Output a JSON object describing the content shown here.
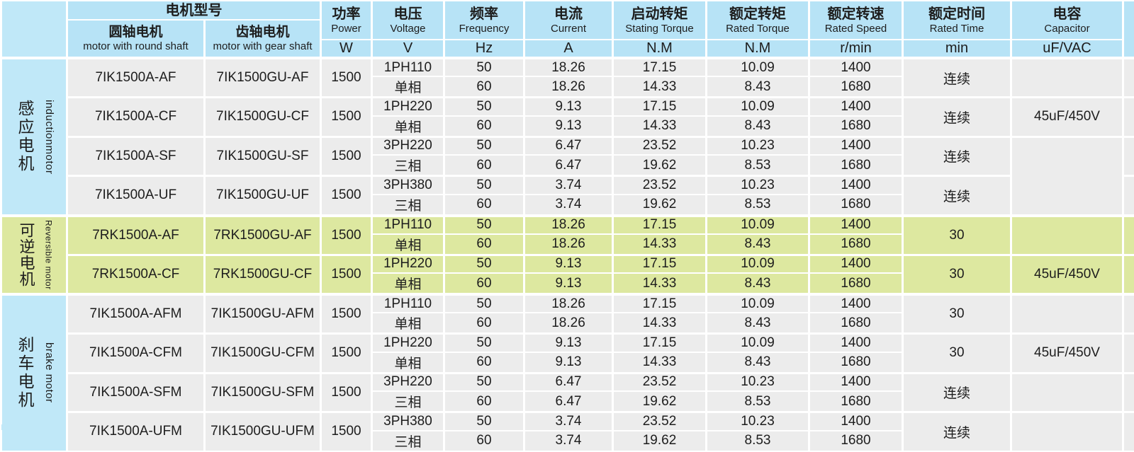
{
  "palette": {
    "header_blue": "#b7e3f6",
    "label_blue": "#c0e8f8",
    "row_grey": "#ececec",
    "row_green": "#dde8a0",
    "border_white": "#ffffff",
    "text_dark": "#1d1d1d"
  },
  "header": {
    "model_group_cn": "电机型号",
    "round_shaft": {
      "cn": "圆轴电机",
      "en": "motor with round shaft"
    },
    "gear_shaft": {
      "cn": "齿轴电机",
      "en": "motor with gear shaft"
    },
    "cols": {
      "power": {
        "cn": "功率",
        "en": "Power",
        "unit": "W"
      },
      "voltage": {
        "cn": "电压",
        "en": "Voltage",
        "unit": "V"
      },
      "frequency": {
        "cn": "频率",
        "en": "Frequency",
        "unit": "Hz"
      },
      "current": {
        "cn": "电流",
        "en": "Current",
        "unit": "A"
      },
      "starting_torque": {
        "cn": "启动转矩",
        "en": "Stating Torque",
        "unit": "N.M"
      },
      "rated_torque": {
        "cn": "额定转矩",
        "en": "Rated Torque",
        "unit": "N.M"
      },
      "rated_speed": {
        "cn": "额定转速",
        "en": "Rated Speed",
        "unit": "r/min"
      },
      "rated_time": {
        "cn": "额定时间",
        "en": "Rated Time",
        "unit": "min"
      },
      "capacitor": {
        "cn": "电容",
        "en": "Capacitor",
        "unit": "uF/VAC"
      }
    }
  },
  "groups": [
    {
      "id": "induction",
      "label_cn": "感应电机",
      "label_en": "inductionmotor",
      "color": "grey",
      "label_style": "blue",
      "motors": [
        {
          "round": "7IK1500A-AF",
          "gear": "7IK1500GU-AF",
          "power": "1500",
          "voltage": "1PH110",
          "phase": "单相",
          "time": "连续",
          "capacitor": {
            "text": "",
            "span": 1
          },
          "rows": [
            {
              "freq": "50",
              "current": "18.26",
              "starting_torque": "17.15",
              "rated_torque": "10.09",
              "speed": "1400"
            },
            {
              "freq": "60",
              "current": "18.26",
              "starting_torque": "14.33",
              "rated_torque": "8.43",
              "speed": "1680"
            }
          ]
        },
        {
          "round": "7IK1500A-CF",
          "gear": "7IK1500GU-CF",
          "power": "1500",
          "voltage": "1PH220",
          "phase": "单相",
          "time": "连续",
          "capacitor": {
            "text": "45uF/450V",
            "span": 1
          },
          "rows": [
            {
              "freq": "50",
              "current": "9.13",
              "starting_torque": "17.15",
              "rated_torque": "10.09",
              "speed": "1400"
            },
            {
              "freq": "60",
              "current": "9.13",
              "starting_torque": "14.33",
              "rated_torque": "8.43",
              "speed": "1680"
            }
          ]
        },
        {
          "round": "7IK1500A-SF",
          "gear": "7IK1500GU-SF",
          "power": "1500",
          "voltage": "3PH220",
          "phase": "三相",
          "time": "连续",
          "capacitor": {
            "text": "",
            "span": 2
          },
          "rows": [
            {
              "freq": "50",
              "current": "6.47",
              "starting_torque": "23.52",
              "rated_torque": "10.23",
              "speed": "1400"
            },
            {
              "freq": "60",
              "current": "6.47",
              "starting_torque": "19.62",
              "rated_torque": "8.53",
              "speed": "1680"
            }
          ]
        },
        {
          "round": "7IK1500A-UF",
          "gear": "7IK1500GU-UF",
          "power": "1500",
          "voltage": "3PH380",
          "phase": "三相",
          "time": "连续",
          "capacitor": null,
          "rows": [
            {
              "freq": "50",
              "current": "3.74",
              "starting_torque": "23.52",
              "rated_torque": "10.23",
              "speed": "1400"
            },
            {
              "freq": "60",
              "current": "3.74",
              "starting_torque": "19.62",
              "rated_torque": "8.53",
              "speed": "1680"
            }
          ]
        }
      ]
    },
    {
      "id": "reversible",
      "label_cn": "可逆电机",
      "label_en": "Reversible motor",
      "color": "green",
      "label_style": "green",
      "motors": [
        {
          "round": "7RK1500A-AF",
          "gear": "7RK1500GU-AF",
          "power": "1500",
          "voltage": "1PH110",
          "phase": "单相",
          "time": "30",
          "capacitor": {
            "text": "",
            "span": 1
          },
          "rows": [
            {
              "freq": "50",
              "current": "18.26",
              "starting_torque": "17.15",
              "rated_torque": "10.09",
              "speed": "1400"
            },
            {
              "freq": "60",
              "current": "18.26",
              "starting_torque": "14.33",
              "rated_torque": "8.43",
              "speed": "1680"
            }
          ]
        },
        {
          "round": "7RK1500A-CF",
          "gear": "7RK1500GU-CF",
          "power": "1500",
          "voltage": "1PH220",
          "phase": "单相",
          "time": "30",
          "capacitor": {
            "text": "45uF/450V",
            "span": 1
          },
          "rows": [
            {
              "freq": "50",
              "current": "9.13",
              "starting_torque": "17.15",
              "rated_torque": "10.09",
              "speed": "1400"
            },
            {
              "freq": "60",
              "current": "9.13",
              "starting_torque": "14.33",
              "rated_torque": "8.43",
              "speed": "1680"
            }
          ]
        }
      ]
    },
    {
      "id": "brake",
      "label_cn": "刹车电机",
      "label_en": "brake motor",
      "color": "grey",
      "label_style": "blue",
      "motors": [
        {
          "round": "7IK1500A-AFM",
          "gear": "7IK1500GU-AFM",
          "power": "1500",
          "voltage": "1PH110",
          "phase": "单相",
          "time": "30",
          "capacitor": {
            "text": "",
            "span": 1
          },
          "rows": [
            {
              "freq": "50",
              "current": "18.26",
              "starting_torque": "17.15",
              "rated_torque": "10.09",
              "speed": "1400"
            },
            {
              "freq": "60",
              "current": "18.26",
              "starting_torque": "14.33",
              "rated_torque": "8.43",
              "speed": "1680"
            }
          ]
        },
        {
          "round": "7IK1500A-CFM",
          "gear": "7IK1500GU-CFM",
          "power": "1500",
          "voltage": "1PH220",
          "phase": "单相",
          "time": "30",
          "capacitor": {
            "text": "45uF/450V",
            "span": 1
          },
          "rows": [
            {
              "freq": "50",
              "current": "9.13",
              "starting_torque": "17.15",
              "rated_torque": "10.09",
              "speed": "1400"
            },
            {
              "freq": "60",
              "current": "9.13",
              "starting_torque": "14.33",
              "rated_torque": "8.43",
              "speed": "1680"
            }
          ]
        },
        {
          "round": "7IK1500A-SFM",
          "gear": "7IK1500GU-SFM",
          "power": "1500",
          "voltage": "3PH220",
          "phase": "三相",
          "time": "连续",
          "capacitor": {
            "text": "",
            "span": 1
          },
          "rows": [
            {
              "freq": "50",
              "current": "6.47",
              "starting_torque": "23.52",
              "rated_torque": "10.23",
              "speed": "1400"
            },
            {
              "freq": "60",
              "current": "6.47",
              "starting_torque": "19.62",
              "rated_torque": "8.53",
              "speed": "1680"
            }
          ]
        },
        {
          "round": "7IK1500A-UFM",
          "gear": "7IK1500GU-UFM",
          "power": "1500",
          "voltage": "3PH380",
          "phase": "三相",
          "time": "连续",
          "capacitor": {
            "text": "",
            "span": 1
          },
          "rows": [
            {
              "freq": "50",
              "current": "3.74",
              "starting_torque": "23.52",
              "rated_torque": "10.23",
              "speed": "1400"
            },
            {
              "freq": "60",
              "current": "3.74",
              "starting_torque": "19.62",
              "rated_torque": "8.53",
              "speed": "1680"
            }
          ]
        }
      ]
    }
  ]
}
